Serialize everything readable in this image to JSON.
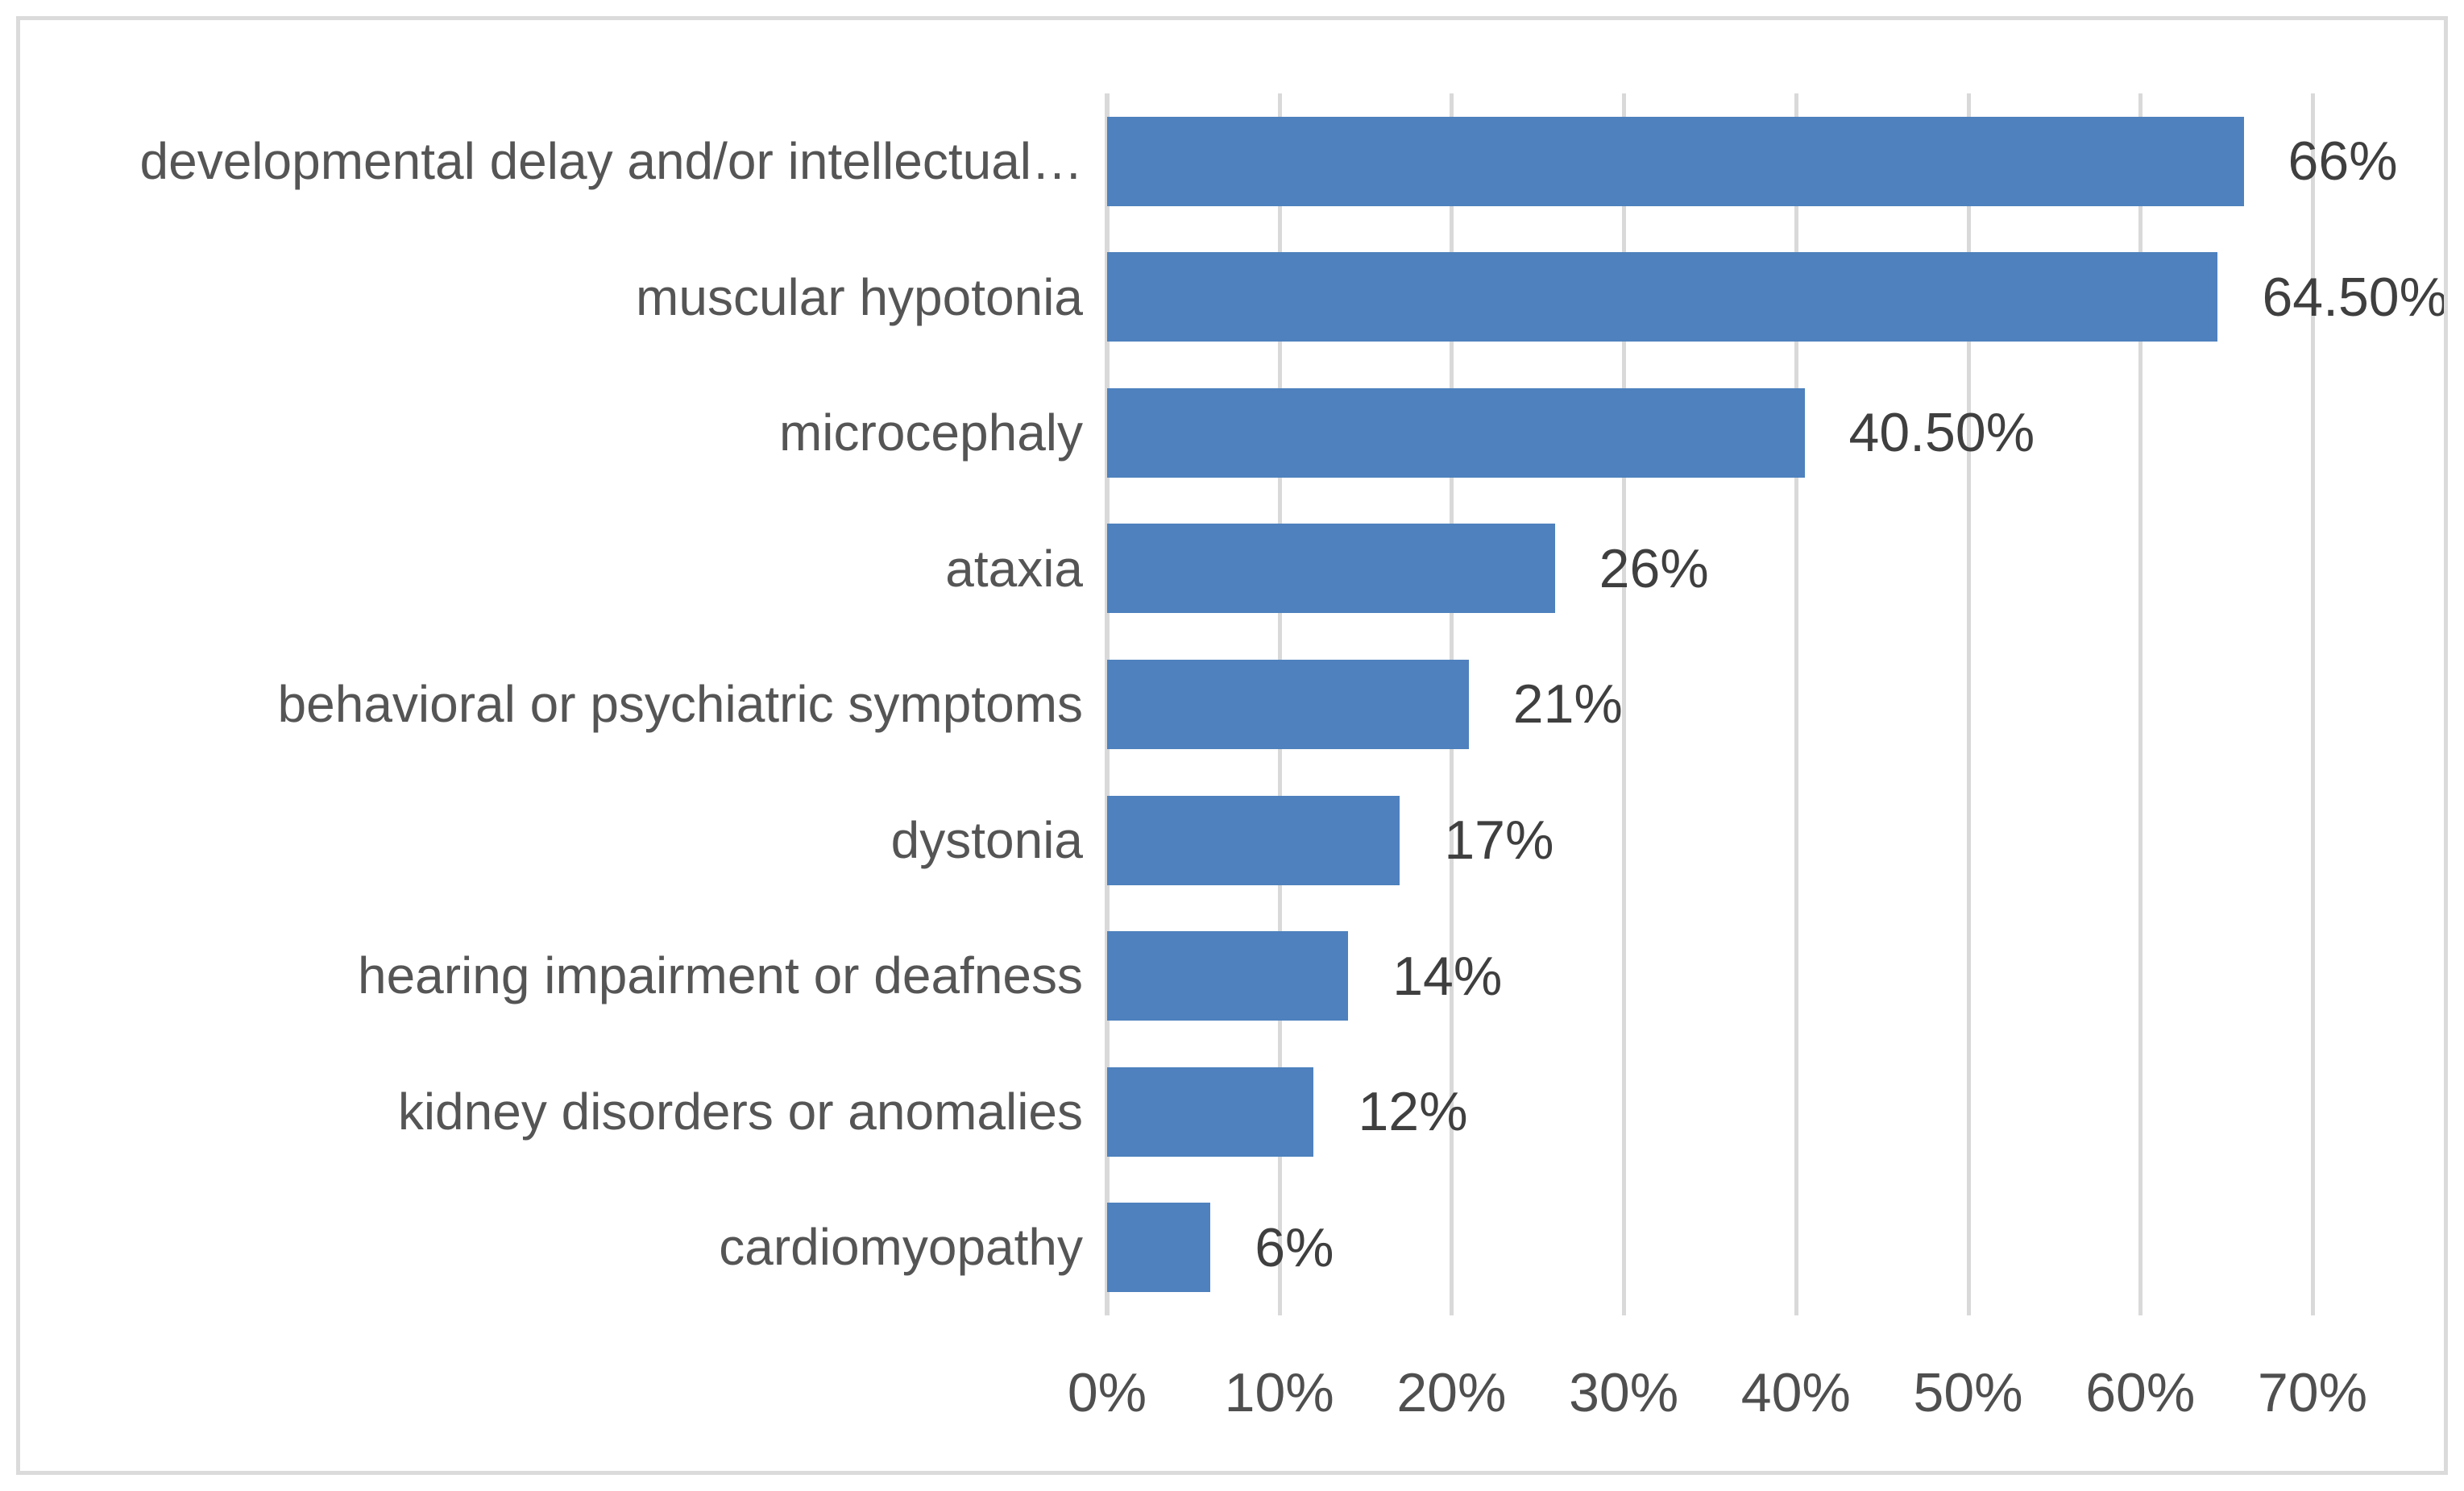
{
  "chart_data": {
    "type": "bar",
    "orientation": "horizontal",
    "title": "",
    "categories": [
      "developmental delay and/or intellectual…",
      "muscular hypotonia",
      "microcephaly",
      "ataxia",
      "behavioral or psychiatric symptoms",
      "dystonia",
      "hearing impairment or deafness",
      "kidney disorders or anomalies",
      "cardiomyopathy"
    ],
    "values": [
      66,
      64.5,
      40.5,
      26,
      21,
      17,
      14,
      12,
      6
    ],
    "value_labels": [
      "66%",
      "64.50%",
      "40.50%",
      "26%",
      "21%",
      "17%",
      "14%",
      "12%",
      "6%"
    ],
    "x_axis": {
      "min": 0,
      "max": 70,
      "step": 10,
      "tick_labels": [
        "0%",
        "10%",
        "20%",
        "30%",
        "40%",
        "50%",
        "60%",
        "70%"
      ]
    },
    "legend": false,
    "grid": true,
    "colors": {
      "bar": "#4e81bd",
      "gridline": "#d9d9d9",
      "frame_border": "#dbdbdb",
      "category_label": "#555555",
      "value_label": "#3f3f3f",
      "tick_label": "#4f4f4f",
      "background": "#ffffff"
    }
  }
}
